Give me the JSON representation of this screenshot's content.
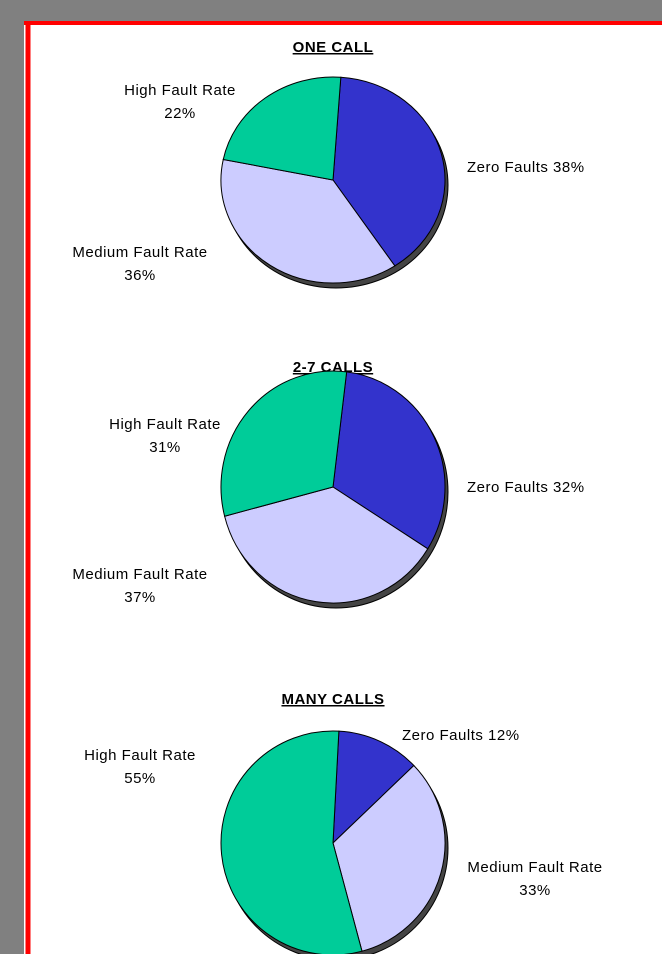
{
  "chart_data": [
    {
      "type": "pie",
      "title": "ONE CALL",
      "categories": [
        "Zero Faults",
        "Medium Fault Rate",
        "High Fault Rate"
      ],
      "values": [
        38,
        36,
        22
      ],
      "value_labels": [
        "38%",
        "36%",
        "22%"
      ],
      "colors": [
        "#3333cc",
        "#ccccff",
        "#00cc99"
      ]
    },
    {
      "type": "pie",
      "title": "2-7 CALLS",
      "categories": [
        "Zero Faults",
        "Medium Fault Rate",
        "High Fault Rate"
      ],
      "values": [
        32,
        37,
        31
      ],
      "value_labels": [
        "32%",
        "37%",
        "31%"
      ],
      "colors": [
        "#3333cc",
        "#ccccff",
        "#00cc99"
      ]
    },
    {
      "type": "pie",
      "title": "MANY CALLS",
      "categories": [
        "Zero Faults",
        "Medium Fault Rate",
        "High Fault Rate"
      ],
      "values": [
        12,
        33,
        55
      ],
      "value_labels": [
        "12%",
        "33%",
        "55%"
      ],
      "colors": [
        "#3333cc",
        "#ccccff",
        "#00cc99"
      ]
    }
  ]
}
